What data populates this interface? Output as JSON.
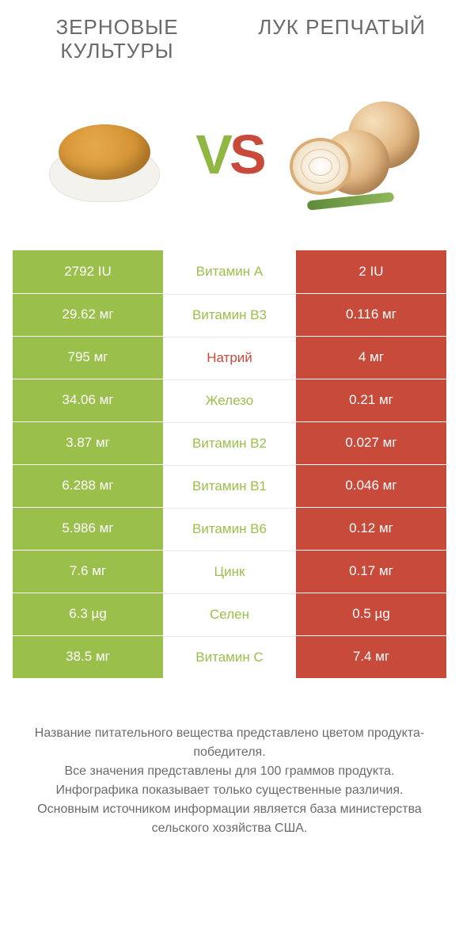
{
  "colors": {
    "left": "#9bbf4b",
    "right": "#c74a3b",
    "left_dim": "#8fb741",
    "right_dim": "#b8493b",
    "row_divider": "#ffffff",
    "text": "#5a5a5a"
  },
  "header": {
    "left_title": "ЗЕРНОВЫЕ КУЛЬТУРЫ",
    "right_title": "ЛУК РЕПЧАТЫЙ",
    "vs_v": "V",
    "vs_s": "S"
  },
  "rows": [
    {
      "left": "2792 IU",
      "name": "Витамин A",
      "right": "2 IU",
      "winner": "left"
    },
    {
      "left": "29.62 мг",
      "name": "Витамин B3",
      "right": "0.116 мг",
      "winner": "left"
    },
    {
      "left": "795 мг",
      "name": "Натрий",
      "right": "4 мг",
      "winner": "right"
    },
    {
      "left": "34.06 мг",
      "name": "Железо",
      "right": "0.21 мг",
      "winner": "left"
    },
    {
      "left": "3.87 мг",
      "name": "Витамин B2",
      "right": "0.027 мг",
      "winner": "left"
    },
    {
      "left": "6.288 мг",
      "name": "Витамин B1",
      "right": "0.046 мг",
      "winner": "left"
    },
    {
      "left": "5.986 мг",
      "name": "Витамин B6",
      "right": "0.12 мг",
      "winner": "left"
    },
    {
      "left": "7.6 мг",
      "name": "Цинк",
      "right": "0.17 мг",
      "winner": "left"
    },
    {
      "left": "6.3 µg",
      "name": "Селен",
      "right": "0.5 µg",
      "winner": "left"
    },
    {
      "left": "38.5 мг",
      "name": "Витамин C",
      "right": "7.4 мг",
      "winner": "left"
    }
  ],
  "footer": {
    "l1": "Название питательного вещества представлено цветом продукта-победителя.",
    "l2": "Все значения представлены для 100 граммов продукта.",
    "l3": "Инфографика показывает только существенные различия.",
    "l4": "Основным источником информации является база министерства сельского хозяйства США."
  }
}
